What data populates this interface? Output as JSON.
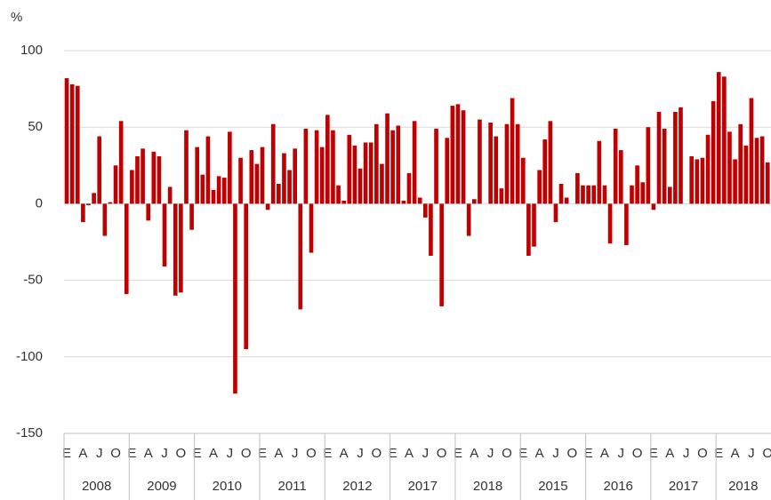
{
  "chart_data": {
    "type": "bar",
    "y_label": "%",
    "color": "#c00000",
    "ylim": [
      -150,
      100
    ],
    "yticks": [
      -150,
      -100,
      -50,
      0,
      50,
      100
    ],
    "grid": true,
    "groups": [
      "2008",
      "2009",
      "2010",
      "2011",
      "2012",
      "2017",
      "2018",
      "2015",
      "2016",
      "2017",
      "2018"
    ],
    "categories": [
      "E",
      null,
      null,
      "A",
      null,
      null,
      "J",
      null,
      null,
      "O",
      null,
      null,
      "E",
      null,
      null,
      "A",
      null,
      null,
      "J",
      null,
      null,
      "O",
      null,
      null,
      "E",
      null,
      null,
      "A",
      null,
      null,
      "J",
      null,
      null,
      "O",
      null,
      null,
      "E",
      null,
      null,
      "A",
      null,
      null,
      "J",
      null,
      null,
      "O",
      null,
      null,
      "E",
      null,
      null,
      "A",
      null,
      null,
      "J",
      null,
      null,
      "O",
      null,
      null,
      "E",
      null,
      null,
      "A",
      null,
      null,
      "J",
      null,
      null,
      "O",
      null,
      null,
      "E",
      null,
      null,
      "A",
      null,
      null,
      "J",
      null,
      null,
      "O",
      null,
      null,
      "E",
      null,
      null,
      "A",
      null,
      null,
      "J",
      null,
      null,
      "O",
      null,
      null,
      "E",
      null,
      null,
      "A",
      null,
      null,
      "J",
      null,
      null,
      "O",
      null,
      null,
      "E",
      null,
      null,
      "A",
      null,
      null,
      "J",
      null,
      null,
      "O",
      null,
      null,
      "E",
      null,
      null,
      "A",
      null,
      null,
      "J",
      null,
      null,
      "O"
    ],
    "values": [
      82,
      78,
      77,
      -12,
      -1,
      7,
      44,
      -21,
      1,
      25,
      54,
      -59,
      22,
      31,
      36,
      -11,
      34,
      31,
      -41,
      11,
      -60,
      -58,
      48,
      -17,
      37,
      19,
      44,
      9,
      18,
      17,
      47,
      -124,
      30,
      -95,
      35,
      26,
      37,
      -4,
      52,
      13,
      33,
      22,
      36,
      -69,
      49,
      -32,
      48,
      37,
      58,
      48,
      12,
      2,
      45,
      38,
      23,
      40,
      40,
      52,
      26,
      59,
      48,
      51,
      2,
      20,
      54,
      4,
      -9,
      -34,
      49,
      -67,
      43,
      64,
      65,
      61,
      -21,
      3,
      55,
      0,
      53,
      44,
      10,
      52,
      69,
      52,
      30,
      -34,
      -28,
      22,
      42,
      54,
      -12,
      13,
      4,
      0,
      20,
      12,
      12,
      12,
      41,
      12,
      -26,
      49,
      35,
      -27,
      12,
      25,
      14,
      50,
      -4,
      60,
      49,
      11,
      60,
      63,
      0,
      31,
      29,
      30,
      45,
      67,
      86,
      83,
      47,
      29,
      52,
      38,
      69,
      43,
      44,
      27
    ]
  }
}
